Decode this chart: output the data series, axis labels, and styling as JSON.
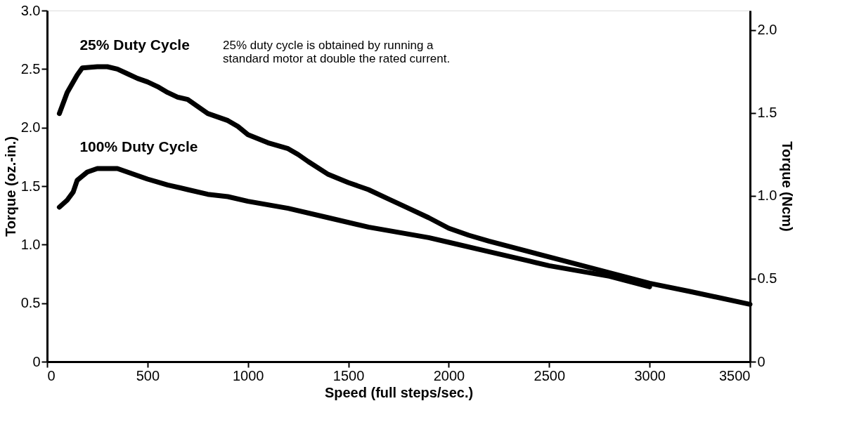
{
  "chart_data": {
    "type": "line",
    "xlabel": "Speed (full steps/sec.)",
    "ylabel": "Torque (oz.-in.)",
    "y2label": "Torque (Ncm)",
    "annotations": [
      "25% duty cycle is obtained by running a\nstandard motor at double the rated current."
    ],
    "xlim": [
      0,
      3500
    ],
    "xticks": [
      0,
      500,
      1000,
      1500,
      2000,
      2500,
      3000,
      3500
    ],
    "ylim": [
      0,
      3.0
    ],
    "yticks": [
      0,
      {
        "value": 0.5,
        "label": "0.5"
      },
      {
        "value": 1,
        "label": "1.0"
      },
      {
        "value": 1.5,
        "label": "1.5"
      },
      {
        "value": 2,
        "label": "2.0"
      },
      {
        "value": 2.5,
        "label": "2.5"
      },
      {
        "value": 3,
        "label": "3.0"
      }
    ],
    "y2lim": [
      0,
      2.118
    ],
    "y2ticks": [
      0,
      {
        "value": 0.5,
        "label": "0.5"
      },
      {
        "value": 1,
        "label": "1.0"
      },
      {
        "value": 1.5,
        "label": "1.5"
      },
      {
        "value": 2,
        "label": "2.0"
      }
    ],
    "marker": "none",
    "line_style": "solid",
    "series": [
      {
        "name": "25% Duty Cycle",
        "color": "#000000",
        "x": [
          61,
          100,
          150,
          175,
          250,
          300,
          350,
          400,
          450,
          500,
          550,
          600,
          650,
          700,
          750,
          800,
          900,
          950,
          1000,
          1100,
          1200,
          1250,
          1300,
          1400,
          1500,
          1600,
          1700,
          1800,
          1900,
          2000,
          2100,
          2200,
          2400,
          2600,
          2800,
          3000,
          3200,
          3500
        ],
        "values": [
          2.12,
          2.3,
          2.45,
          2.51,
          2.52,
          2.52,
          2.5,
          2.46,
          2.42,
          2.39,
          2.35,
          2.3,
          2.26,
          2.24,
          2.18,
          2.12,
          2.06,
          2.01,
          1.94,
          1.87,
          1.82,
          1.77,
          1.71,
          1.6,
          1.53,
          1.47,
          1.39,
          1.31,
          1.23,
          1.14,
          1.08,
          1.03,
          0.94,
          0.85,
          0.76,
          0.67,
          0.6,
          0.49
        ]
      },
      {
        "name": "100% Duty Cycle",
        "color": "#000000",
        "x": [
          61,
          100,
          130,
          150,
          200,
          250,
          350,
          400,
          500,
          600,
          700,
          800,
          900,
          1000,
          1200,
          1400,
          1600,
          1800,
          1900,
          2000,
          2200,
          2400,
          2500,
          2600,
          2800,
          3000
        ],
        "values": [
          1.32,
          1.38,
          1.45,
          1.55,
          1.62,
          1.65,
          1.65,
          1.62,
          1.56,
          1.51,
          1.47,
          1.43,
          1.41,
          1.37,
          1.31,
          1.23,
          1.15,
          1.09,
          1.06,
          1.02,
          0.94,
          0.86,
          0.82,
          0.79,
          0.73,
          0.64
        ]
      }
    ]
  }
}
